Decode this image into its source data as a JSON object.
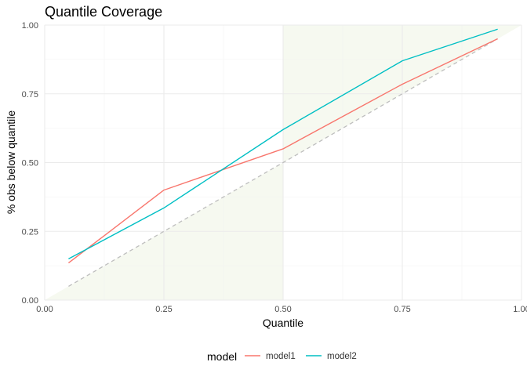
{
  "chart_data": {
    "type": "line",
    "title": "Quantile Coverage",
    "xlabel": "Quantile",
    "ylabel": "% obs below quantile",
    "xlim": [
      0,
      1
    ],
    "ylim": [
      0,
      1
    ],
    "x_ticks": [
      0,
      0.25,
      0.5,
      0.75,
      1
    ],
    "x_tick_labels": [
      "0.00",
      "0.25",
      "0.50",
      "0.75",
      "1.00"
    ],
    "y_ticks": [
      0,
      0.25,
      0.5,
      0.75,
      1
    ],
    "y_tick_labels": [
      "0.00",
      "0.25",
      "0.50",
      "0.75",
      "1.00"
    ],
    "grid": true,
    "reference_line": {
      "x": [
        0.05,
        0.95
      ],
      "y": [
        0.05,
        0.95
      ],
      "style": "dashed",
      "color": "#BEBEBE"
    },
    "shaded_regions": [
      {
        "polygon": [
          [
            0,
            0
          ],
          [
            0.5,
            0.5
          ],
          [
            0.5,
            0
          ]
        ],
        "color": "#F6F9F0"
      },
      {
        "polygon": [
          [
            0.5,
            0.5
          ],
          [
            1,
            1
          ],
          [
            0.5,
            1
          ]
        ],
        "color": "#F6F9F0"
      }
    ],
    "x": [
      0.05,
      0.25,
      0.5,
      0.75,
      0.95
    ],
    "series": [
      {
        "name": "model1",
        "color": "#F8766D",
        "values": [
          0.135,
          0.4,
          0.55,
          0.785,
          0.95
        ]
      },
      {
        "name": "model2",
        "color": "#00BFC4",
        "values": [
          0.15,
          0.335,
          0.62,
          0.87,
          0.985
        ]
      }
    ],
    "legend": {
      "title": "model",
      "position": "bottom"
    }
  }
}
